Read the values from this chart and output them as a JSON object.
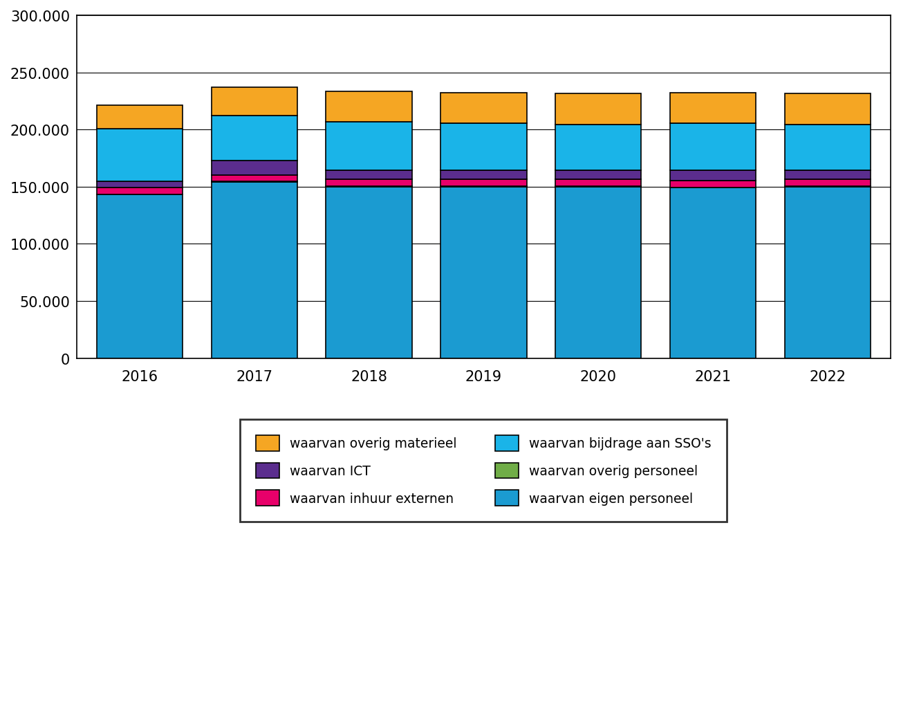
{
  "years": [
    "2016",
    "2017",
    "2018",
    "2019",
    "2020",
    "2021",
    "2022"
  ],
  "series": {
    "waarvan eigen personeel": [
      143000,
      154000,
      150000,
      150000,
      150000,
      149000,
      150000
    ],
    "waarvan overig personeel": [
      500,
      500,
      500,
      500,
      500,
      500,
      500
    ],
    "waarvan inhuur externen": [
      6000,
      5500,
      6000,
      6000,
      6000,
      6000,
      6000
    ],
    "waarvan ICT": [
      5000,
      13000,
      8000,
      8000,
      8000,
      9000,
      8000
    ],
    "waarvan bijdrage aan SSO's": [
      46000,
      39000,
      42000,
      41000,
      40000,
      41000,
      40000
    ],
    "waarvan overig materieel": [
      21000,
      25000,
      27000,
      27000,
      27000,
      27000,
      27000
    ]
  },
  "colors": {
    "waarvan eigen personeel": "#1B9BD1",
    "waarvan overig personeel": "#70AD47",
    "waarvan inhuur externen": "#E8006A",
    "waarvan ICT": "#5B2D8E",
    "waarvan bijdrage aan SSO's": "#1AB4E8",
    "waarvan overig materieel": "#F5A623"
  },
  "stack_order": [
    "waarvan eigen personeel",
    "waarvan overig personeel",
    "waarvan inhuur externen",
    "waarvan ICT",
    "waarvan bijdrage aan SSO's",
    "waarvan overig materieel"
  ],
  "legend_order": [
    "waarvan overig materieel",
    "waarvan ICT",
    "waarvan inhuur externen",
    "waarvan bijdrage aan SSO's",
    "waarvan overig personeel",
    "waarvan eigen personeel"
  ],
  "ylim": [
    0,
    300000
  ],
  "yticks": [
    0,
    50000,
    100000,
    150000,
    200000,
    250000,
    300000
  ],
  "ytick_labels": [
    "0",
    "50.000",
    "100.000",
    "150.000",
    "200.000",
    "250.000",
    "300.000"
  ],
  "background_color": "#ffffff",
  "bar_edge_color": "#000000",
  "bar_width": 0.75
}
